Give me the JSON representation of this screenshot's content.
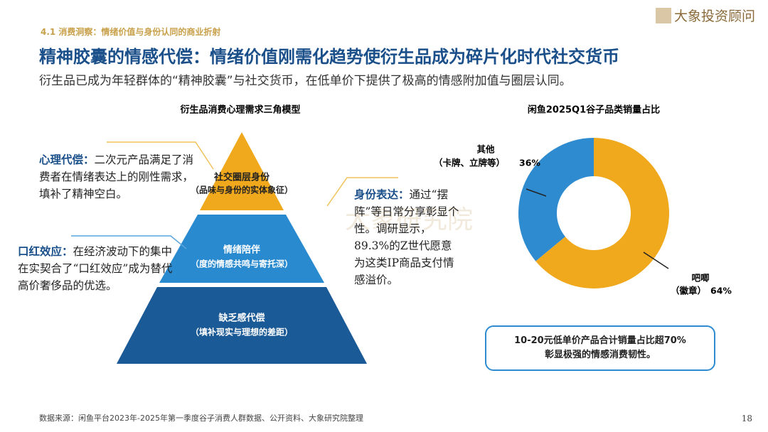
{
  "header": {
    "section": "4.1 消费洞察：情绪价值与身份认同的商业折射",
    "title": "精神胶囊的情感代偿：情绪价值刚需化趋势使衍生品成为碎片化时代社交货币",
    "subtitle": "衍生品已成为年轻群体的“精神胶囊”与社交货币，在低单价下提供了极高的情感附加值与圈层认同。",
    "logo": "大象投资顾问"
  },
  "pyramid": {
    "title": "衍生品消费心理需求三角模型",
    "levels": [
      {
        "label": "社交圈层身份",
        "detail": "（品味与身份的实体象征）"
      },
      {
        "label": "情绪陪伴",
        "detail": "（度的情感共鸣与寄托深）"
      },
      {
        "label": "缺乏感代偿",
        "detail": "（填补现实与理想的差距）"
      }
    ]
  },
  "notes": [
    {
      "heading": "心理代偿：",
      "text": "二次元产品满足了消费者在情绪表达上的刚性需求，填补了精神空白。"
    },
    {
      "heading": "口红效应：",
      "text": "在经济波动下的集中在实契合了“口红效应”成为替代高价奢侈品的优选。"
    },
    {
      "heading": "身份表达：",
      "text": "通过“摆阵”等日常分享彰显个性。调研显示，89.3%的Z世代愿意为这类IP商品支付情感溢价。"
    }
  ],
  "watermark": "大象研究院",
  "chart_data": {
    "type": "pie",
    "title": "闲鱼2025Q1谷子品类销量占比",
    "categories": [
      "其他",
      "吧唧"
    ],
    "category_details": [
      "（卡牌、立牌等）",
      "（徽章）"
    ],
    "values": [
      36,
      64
    ],
    "value_labels": [
      "36%",
      "64%"
    ],
    "colors": [
      "#2e8bd0",
      "#f0a81c"
    ],
    "donut": true
  },
  "callout": [
    "10-20元低单价产品合计销量占比超70%",
    "彰显极强的情感消费韧性。"
  ],
  "footer": {
    "source": "数据来源：闲鱼平台2023年-2025年第一季度谷子消费人群数据、公开资料、大象研究院整理",
    "page": "18"
  }
}
